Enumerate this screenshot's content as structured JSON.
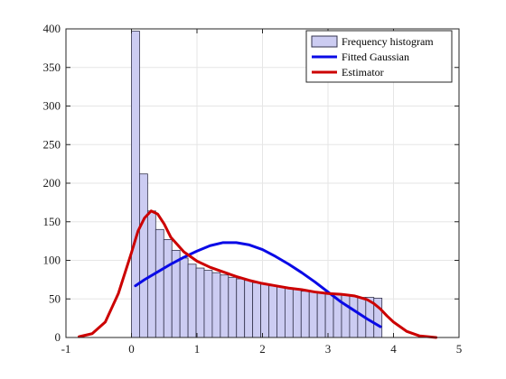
{
  "colors": {
    "histogram_fill": "#ccccf2",
    "histogram_edge": "#33334d",
    "gaussian": "#0a0ae6",
    "estimator": "#cc0000",
    "grid": "#e6e6e6",
    "axis": "#262626"
  },
  "legend": {
    "items": [
      {
        "label": "Frequency histogram",
        "kind": "patch",
        "color": "#ccccf2"
      },
      {
        "label": "Fitted Gaussian",
        "kind": "line",
        "color": "#0a0ae6"
      },
      {
        "label": "Estimator",
        "kind": "line",
        "color": "#cc0000"
      }
    ]
  },
  "chart_data": {
    "type": "bar",
    "title": "",
    "xlabel": "",
    "ylabel": "",
    "xlim": [
      -1,
      5
    ],
    "ylim": [
      0,
      400
    ],
    "xticks": [
      -1,
      0,
      1,
      2,
      3,
      4,
      5
    ],
    "yticks": [
      0,
      50,
      100,
      150,
      200,
      250,
      300,
      350,
      400
    ],
    "grid": true,
    "legend_position": "top-right",
    "histogram": {
      "name": "Frequency histogram",
      "bin_width": 0.1233,
      "bin_left_edges": [
        0.0,
        0.1233,
        0.2467,
        0.37,
        0.4933,
        0.6167,
        0.74,
        0.8633,
        0.9867,
        1.11,
        1.2333,
        1.3567,
        1.48,
        1.6033,
        1.7267,
        1.85,
        1.9733,
        2.0967,
        2.22,
        2.3433,
        2.4667,
        2.59,
        2.7133,
        2.8367,
        2.96,
        3.0833,
        3.2067,
        3.33,
        3.4533,
        3.5767,
        3.7
      ],
      "values": [
        397,
        212,
        164,
        140,
        127,
        113,
        103,
        95,
        90,
        87,
        84,
        81,
        78,
        76,
        74,
        71,
        69,
        67,
        66,
        64,
        62,
        60,
        59,
        58,
        57,
        56,
        55,
        54,
        52,
        52,
        51
      ]
    },
    "series": [
      {
        "name": "Fitted Gaussian",
        "type": "line",
        "x": [
          0.06,
          0.2,
          0.4,
          0.6,
          0.8,
          1.0,
          1.2,
          1.4,
          1.6,
          1.8,
          2.0,
          2.2,
          2.4,
          2.6,
          2.8,
          3.0,
          3.2,
          3.4,
          3.6,
          3.8
        ],
        "y": [
          67,
          75,
          85,
          95,
          104,
          112,
          119,
          123,
          123,
          120,
          114,
          105,
          95,
          84,
          72,
          59,
          46,
          35,
          24,
          14
        ]
      },
      {
        "name": "Estimator",
        "type": "line",
        "x": [
          -0.8,
          -0.6,
          -0.4,
          -0.2,
          0.0,
          0.1,
          0.2,
          0.3,
          0.4,
          0.5,
          0.6,
          0.8,
          1.0,
          1.2,
          1.4,
          1.6,
          1.8,
          2.0,
          2.2,
          2.4,
          2.6,
          2.8,
          3.0,
          3.2,
          3.4,
          3.6,
          3.7,
          3.8,
          3.9,
          4.0,
          4.2,
          4.4,
          4.65
        ],
        "y": [
          1,
          5,
          20,
          57,
          110,
          138,
          155,
          164,
          160,
          147,
          130,
          111,
          99,
          91,
          85,
          79,
          74,
          70,
          67,
          64,
          62,
          59,
          57,
          56,
          54,
          49,
          44,
          37,
          28,
          20,
          8,
          2,
          0
        ]
      }
    ]
  }
}
